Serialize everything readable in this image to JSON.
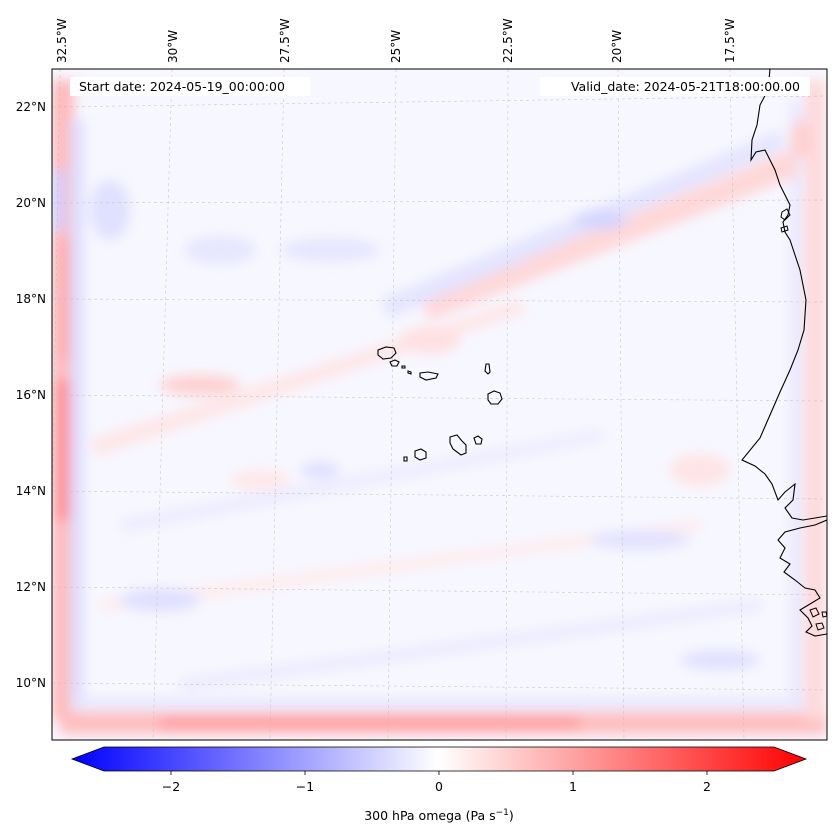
{
  "map": {
    "lon_labels": [
      "32.5°W",
      "30°W",
      "27.5°W",
      "25°W",
      "22.5°W",
      "20°W",
      "17.5°W"
    ],
    "lat_labels": [
      "22°N",
      "20°N",
      "18°N",
      "16°N",
      "14°N",
      "12°N",
      "10°N"
    ],
    "start_date": "Start date: 2024-05-19_00:00:00",
    "valid_date": "Valid_date: 2024-05-21T18:00:00.00",
    "field_colors": {
      "negative": "#0000ff",
      "zero": "#ffffff",
      "positive": "#ff0000"
    },
    "coastline_color": "#000000",
    "gridlines": true
  },
  "colorbar": {
    "ticks": [
      "−2",
      "−1",
      "0",
      "1",
      "2"
    ],
    "tick_values": [
      -2,
      -1,
      0,
      1,
      2
    ],
    "range": [
      -2.5,
      2.5
    ],
    "label_prefix": "300 hPa omega (Pa s",
    "label_exp": "−1",
    "label_suffix": ")",
    "extend": "both",
    "colormap": "bwr"
  }
}
